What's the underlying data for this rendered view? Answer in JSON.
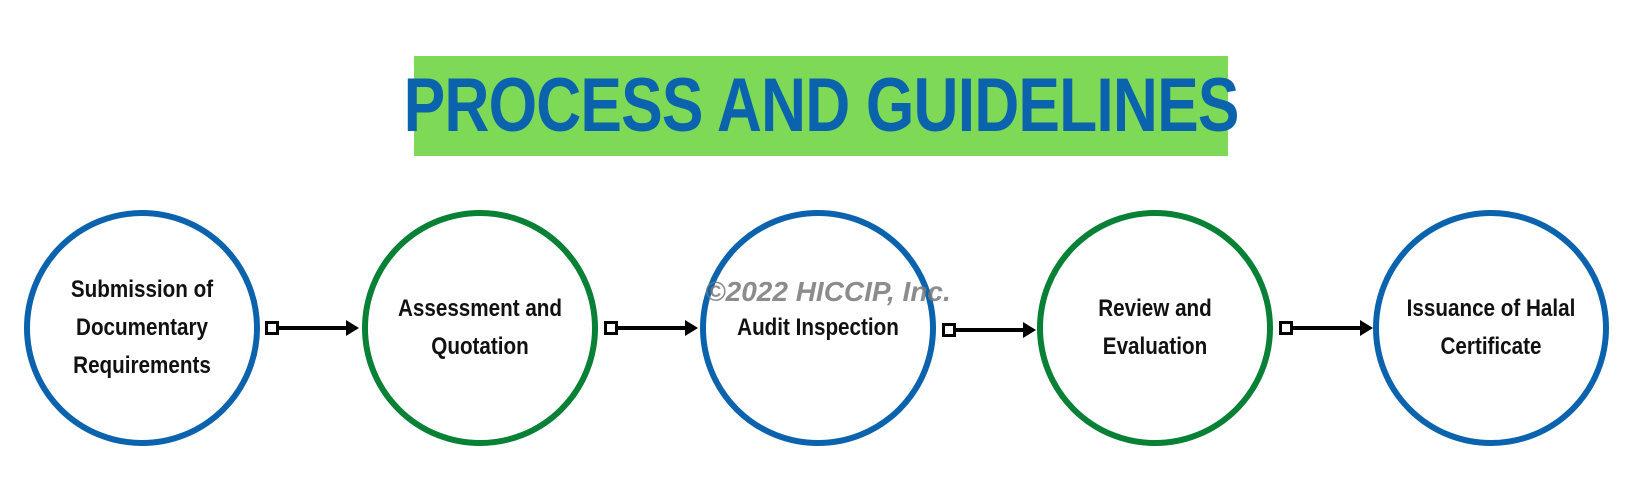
{
  "title": "PROCESS AND GUIDELINES",
  "steps": [
    {
      "label": "Submission of Documentary Requirements",
      "color": "#0b63ae"
    },
    {
      "label": "Assessment and Quotation",
      "color": "#088035"
    },
    {
      "label": "Audit Inspection",
      "color": "#0b63ae"
    },
    {
      "label": "Review and Evaluation",
      "color": "#088035"
    },
    {
      "label": "Issuance of Halal Certificate",
      "color": "#0b63ae"
    }
  ],
  "watermark": "©2022 HICCIP, Inc.",
  "colors": {
    "banner": "#7ed957",
    "title": "#0b63ae",
    "blue": "#0b63ae",
    "green": "#088035",
    "arrow": "#000000"
  }
}
